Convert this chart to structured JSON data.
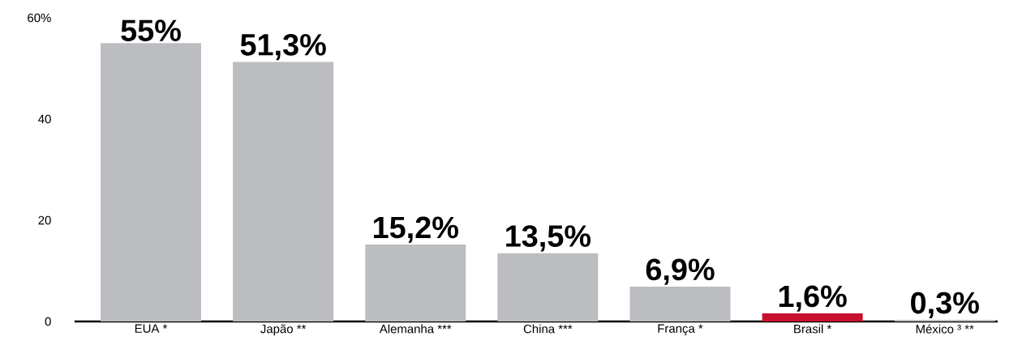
{
  "chart_data": {
    "type": "bar",
    "categories": [
      "EUA *",
      "Japão **",
      "Alemanha ***",
      "China ***",
      "França *",
      "Brasil *",
      "México ³ **"
    ],
    "values": [
      55,
      51.3,
      15.2,
      13.5,
      6.9,
      1.6,
      0.3
    ],
    "colors": [
      "#bcbdc0",
      "#bcbdc0",
      "#bcbdc0",
      "#bcbdc0",
      "#bcbdc0",
      "#c8102e",
      "#bcbdc0"
    ],
    "value_labels": [
      "55%",
      "51,3%",
      "15,2%",
      "13,5%",
      "6,9%",
      "1,6%",
      "0,3%"
    ],
    "ylim": [
      0,
      60
    ],
    "yticks": [
      0,
      20,
      40,
      {
        "value": 60,
        "label": "60%"
      }
    ]
  }
}
